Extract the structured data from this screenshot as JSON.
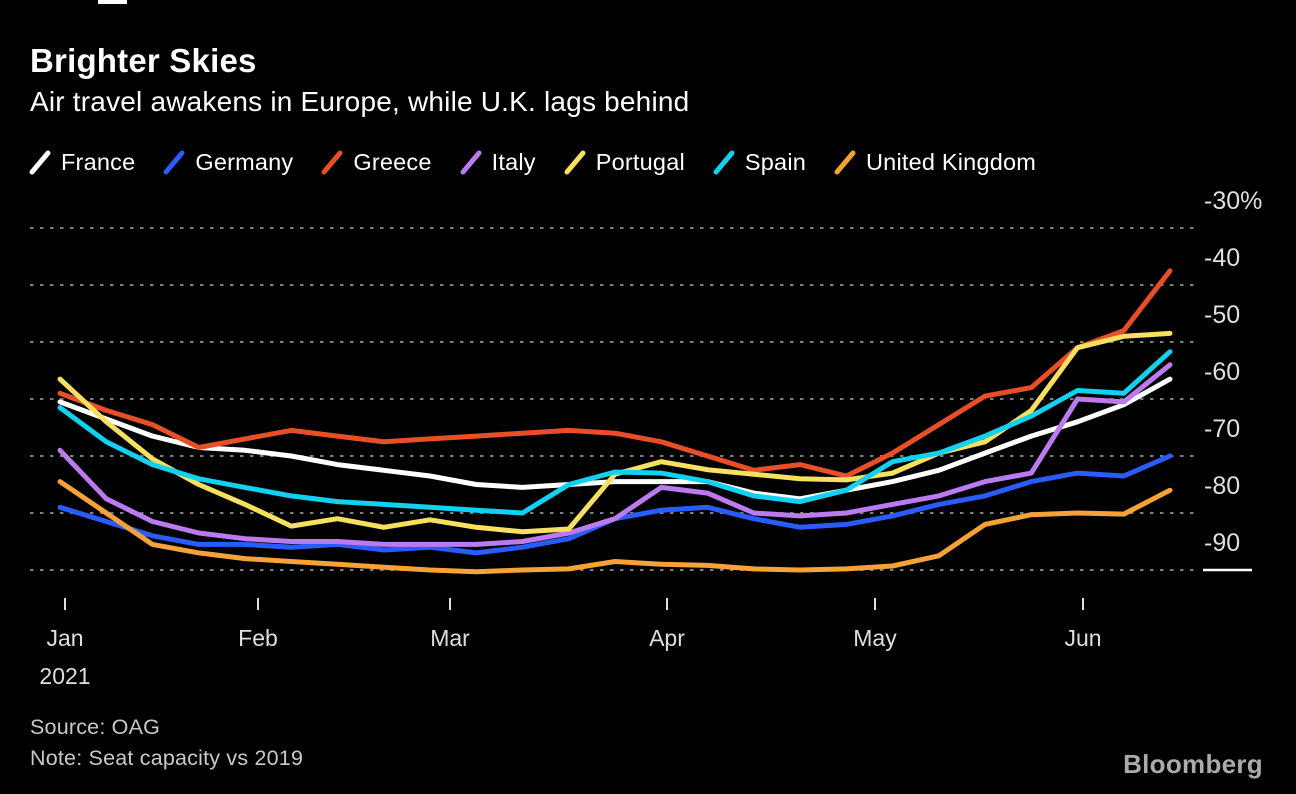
{
  "header": {
    "title": "Brighter Skies",
    "subtitle": "Air travel awakens in Europe, while U.K. lags behind"
  },
  "footer": {
    "source": "Source: OAG",
    "note": "Note: Seat capacity vs 2019",
    "brand": "Bloomberg"
  },
  "chart_data": {
    "type": "line",
    "title": "Brighter Skies",
    "subtitle": "Air travel awakens in Europe, while U.K. lags behind",
    "unit": "weekly seat capacity, % vs 2019",
    "grid": "dotted horizontal",
    "legend_position": "top",
    "x_axis": {
      "tick_labels": [
        "Jan",
        "Feb",
        "Mar",
        "Apr",
        "May",
        "Jun"
      ],
      "year_label": "2021"
    },
    "y_axis": {
      "tick_labels": [
        "-30%",
        "-40",
        "-50",
        "-60",
        "-70",
        "-80",
        "-90"
      ],
      "tick_values": [
        -30,
        -40,
        -50,
        -60,
        -70,
        -80,
        -90
      ],
      "range": [
        -93,
        -30
      ],
      "side": "right"
    },
    "series": [
      {
        "name": "France",
        "color": "#ffffff",
        "values": [
          -60.5,
          -63.5,
          -66.5,
          -68.5,
          -69,
          -70,
          -71.5,
          -72.5,
          -73.5,
          -75,
          -75.5,
          -75,
          -74.5,
          -74.5,
          -74.5,
          -76.5,
          -77.5,
          -76,
          -74.5,
          -72.5,
          -69.5,
          -66.5,
          -64,
          -61,
          -56.5
        ]
      },
      {
        "name": "Germany",
        "color": "#2a5cfc",
        "values": [
          -79,
          -81.5,
          -84,
          -85.5,
          -85.5,
          -86,
          -85.5,
          -86.5,
          -86,
          -87,
          -86,
          -84.5,
          -81,
          -79.5,
          -79,
          -81,
          -82.5,
          -82,
          -80.5,
          -78.5,
          -77,
          -74.5,
          -73,
          -73.5,
          -70
        ]
      },
      {
        "name": "Greece",
        "color": "#ea4e27",
        "values": [
          -59,
          -62,
          -64.5,
          -68.5,
          -67,
          -65.5,
          -66.5,
          -67.5,
          -67,
          -66.5,
          -66,
          -65.5,
          -66,
          -67.5,
          -70,
          -72.5,
          -71.5,
          -73.5,
          -69.5,
          -64.5,
          -59.5,
          -58,
          -51,
          -48,
          -37.5
        ]
      },
      {
        "name": "Italy",
        "color": "#bb7af0",
        "values": [
          -69,
          -77.5,
          -81.5,
          -83.5,
          -84.5,
          -85,
          -85,
          -85.5,
          -85.5,
          -85.5,
          -85,
          -83.5,
          -81,
          -75.5,
          -76.5,
          -80,
          -80.5,
          -80,
          -78.5,
          -77,
          -74.5,
          -73,
          -60,
          -60.5,
          -54
        ]
      },
      {
        "name": "Portugal",
        "color": "#f6e05e",
        "values": [
          -56.5,
          -64,
          -70.5,
          -75,
          -78.5,
          -82.3,
          -81,
          -82.5,
          -81.2,
          -82.5,
          -83.3,
          -82.8,
          -73.2,
          -71,
          -72.4,
          -73.2,
          -74,
          -74.2,
          -73,
          -69.5,
          -67.5,
          -62,
          -51,
          -49,
          -48.5
        ]
      },
      {
        "name": "Spain",
        "color": "#12d1f0",
        "values": [
          -61.5,
          -67.5,
          -71.5,
          -74,
          -75.5,
          -77,
          -78,
          -78.5,
          -79,
          -79.5,
          -80,
          -75,
          -72.8,
          -73,
          -74.5,
          -77,
          -78,
          -76,
          -71,
          -69.5,
          -66.5,
          -63,
          -58.5,
          -59,
          -51.7
        ]
      },
      {
        "name": "United Kingdom",
        "color": "#f6a237",
        "values": [
          -74.5,
          -80,
          -85.5,
          -87,
          -88,
          -88.5,
          -89,
          -89.5,
          -90,
          -90.3,
          -90,
          -89.8,
          -88.5,
          -89,
          -89.2,
          -89.8,
          -90,
          -89.8,
          -89.3,
          -87.5,
          -82,
          -80.3,
          -80,
          -80.2,
          -76
        ]
      }
    ]
  }
}
